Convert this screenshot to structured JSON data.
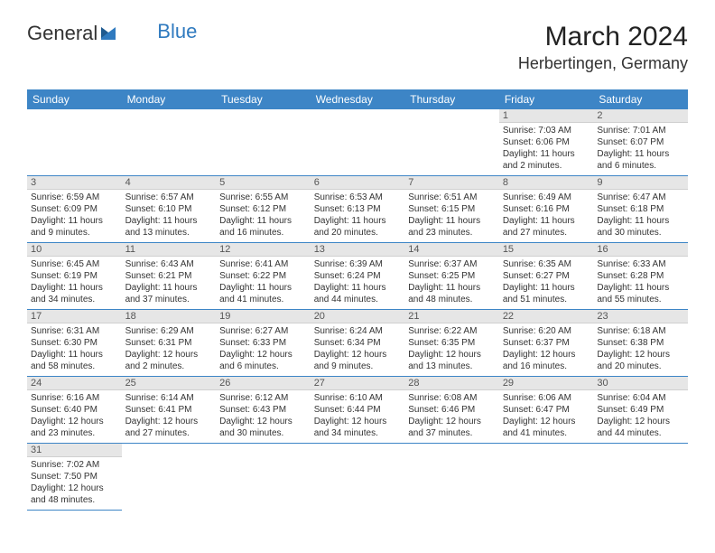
{
  "logo": {
    "general": "General",
    "blue": "Blue"
  },
  "month_title": "March 2024",
  "location": "Herbertingen, Germany",
  "colors": {
    "header_bg": "#3d85c6",
    "header_text": "#ffffff",
    "daynum_bg": "#e6e6e6",
    "border": "#3d85c6",
    "logo_blue": "#2f7abf"
  },
  "day_headers": [
    "Sunday",
    "Monday",
    "Tuesday",
    "Wednesday",
    "Thursday",
    "Friday",
    "Saturday"
  ],
  "weeks": [
    [
      null,
      null,
      null,
      null,
      null,
      {
        "n": "1",
        "sr": "Sunrise: 7:03 AM",
        "ss": "Sunset: 6:06 PM",
        "d1": "Daylight: 11 hours",
        "d2": "and 2 minutes."
      },
      {
        "n": "2",
        "sr": "Sunrise: 7:01 AM",
        "ss": "Sunset: 6:07 PM",
        "d1": "Daylight: 11 hours",
        "d2": "and 6 minutes."
      }
    ],
    [
      {
        "n": "3",
        "sr": "Sunrise: 6:59 AM",
        "ss": "Sunset: 6:09 PM",
        "d1": "Daylight: 11 hours",
        "d2": "and 9 minutes."
      },
      {
        "n": "4",
        "sr": "Sunrise: 6:57 AM",
        "ss": "Sunset: 6:10 PM",
        "d1": "Daylight: 11 hours",
        "d2": "and 13 minutes."
      },
      {
        "n": "5",
        "sr": "Sunrise: 6:55 AM",
        "ss": "Sunset: 6:12 PM",
        "d1": "Daylight: 11 hours",
        "d2": "and 16 minutes."
      },
      {
        "n": "6",
        "sr": "Sunrise: 6:53 AM",
        "ss": "Sunset: 6:13 PM",
        "d1": "Daylight: 11 hours",
        "d2": "and 20 minutes."
      },
      {
        "n": "7",
        "sr": "Sunrise: 6:51 AM",
        "ss": "Sunset: 6:15 PM",
        "d1": "Daylight: 11 hours",
        "d2": "and 23 minutes."
      },
      {
        "n": "8",
        "sr": "Sunrise: 6:49 AM",
        "ss": "Sunset: 6:16 PM",
        "d1": "Daylight: 11 hours",
        "d2": "and 27 minutes."
      },
      {
        "n": "9",
        "sr": "Sunrise: 6:47 AM",
        "ss": "Sunset: 6:18 PM",
        "d1": "Daylight: 11 hours",
        "d2": "and 30 minutes."
      }
    ],
    [
      {
        "n": "10",
        "sr": "Sunrise: 6:45 AM",
        "ss": "Sunset: 6:19 PM",
        "d1": "Daylight: 11 hours",
        "d2": "and 34 minutes."
      },
      {
        "n": "11",
        "sr": "Sunrise: 6:43 AM",
        "ss": "Sunset: 6:21 PM",
        "d1": "Daylight: 11 hours",
        "d2": "and 37 minutes."
      },
      {
        "n": "12",
        "sr": "Sunrise: 6:41 AM",
        "ss": "Sunset: 6:22 PM",
        "d1": "Daylight: 11 hours",
        "d2": "and 41 minutes."
      },
      {
        "n": "13",
        "sr": "Sunrise: 6:39 AM",
        "ss": "Sunset: 6:24 PM",
        "d1": "Daylight: 11 hours",
        "d2": "and 44 minutes."
      },
      {
        "n": "14",
        "sr": "Sunrise: 6:37 AM",
        "ss": "Sunset: 6:25 PM",
        "d1": "Daylight: 11 hours",
        "d2": "and 48 minutes."
      },
      {
        "n": "15",
        "sr": "Sunrise: 6:35 AM",
        "ss": "Sunset: 6:27 PM",
        "d1": "Daylight: 11 hours",
        "d2": "and 51 minutes."
      },
      {
        "n": "16",
        "sr": "Sunrise: 6:33 AM",
        "ss": "Sunset: 6:28 PM",
        "d1": "Daylight: 11 hours",
        "d2": "and 55 minutes."
      }
    ],
    [
      {
        "n": "17",
        "sr": "Sunrise: 6:31 AM",
        "ss": "Sunset: 6:30 PM",
        "d1": "Daylight: 11 hours",
        "d2": "and 58 minutes."
      },
      {
        "n": "18",
        "sr": "Sunrise: 6:29 AM",
        "ss": "Sunset: 6:31 PM",
        "d1": "Daylight: 12 hours",
        "d2": "and 2 minutes."
      },
      {
        "n": "19",
        "sr": "Sunrise: 6:27 AM",
        "ss": "Sunset: 6:33 PM",
        "d1": "Daylight: 12 hours",
        "d2": "and 6 minutes."
      },
      {
        "n": "20",
        "sr": "Sunrise: 6:24 AM",
        "ss": "Sunset: 6:34 PM",
        "d1": "Daylight: 12 hours",
        "d2": "and 9 minutes."
      },
      {
        "n": "21",
        "sr": "Sunrise: 6:22 AM",
        "ss": "Sunset: 6:35 PM",
        "d1": "Daylight: 12 hours",
        "d2": "and 13 minutes."
      },
      {
        "n": "22",
        "sr": "Sunrise: 6:20 AM",
        "ss": "Sunset: 6:37 PM",
        "d1": "Daylight: 12 hours",
        "d2": "and 16 minutes."
      },
      {
        "n": "23",
        "sr": "Sunrise: 6:18 AM",
        "ss": "Sunset: 6:38 PM",
        "d1": "Daylight: 12 hours",
        "d2": "and 20 minutes."
      }
    ],
    [
      {
        "n": "24",
        "sr": "Sunrise: 6:16 AM",
        "ss": "Sunset: 6:40 PM",
        "d1": "Daylight: 12 hours",
        "d2": "and 23 minutes."
      },
      {
        "n": "25",
        "sr": "Sunrise: 6:14 AM",
        "ss": "Sunset: 6:41 PM",
        "d1": "Daylight: 12 hours",
        "d2": "and 27 minutes."
      },
      {
        "n": "26",
        "sr": "Sunrise: 6:12 AM",
        "ss": "Sunset: 6:43 PM",
        "d1": "Daylight: 12 hours",
        "d2": "and 30 minutes."
      },
      {
        "n": "27",
        "sr": "Sunrise: 6:10 AM",
        "ss": "Sunset: 6:44 PM",
        "d1": "Daylight: 12 hours",
        "d2": "and 34 minutes."
      },
      {
        "n": "28",
        "sr": "Sunrise: 6:08 AM",
        "ss": "Sunset: 6:46 PM",
        "d1": "Daylight: 12 hours",
        "d2": "and 37 minutes."
      },
      {
        "n": "29",
        "sr": "Sunrise: 6:06 AM",
        "ss": "Sunset: 6:47 PM",
        "d1": "Daylight: 12 hours",
        "d2": "and 41 minutes."
      },
      {
        "n": "30",
        "sr": "Sunrise: 6:04 AM",
        "ss": "Sunset: 6:49 PM",
        "d1": "Daylight: 12 hours",
        "d2": "and 44 minutes."
      }
    ],
    [
      {
        "n": "31",
        "sr": "Sunrise: 7:02 AM",
        "ss": "Sunset: 7:50 PM",
        "d1": "Daylight: 12 hours",
        "d2": "and 48 minutes."
      },
      null,
      null,
      null,
      null,
      null,
      null
    ]
  ]
}
